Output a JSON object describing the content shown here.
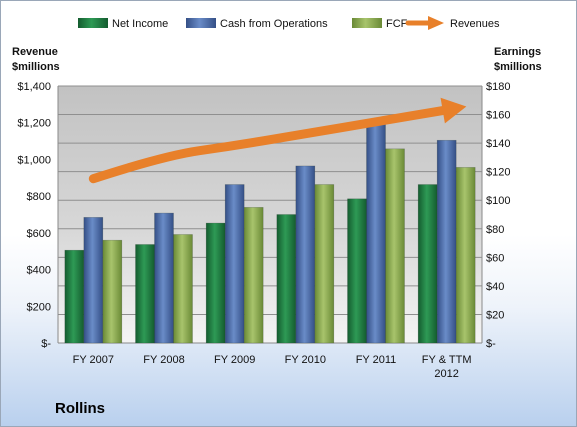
{
  "company": "Rollins",
  "colors": {
    "net_income": "#1e7a40",
    "cash_ops": "#4a6aa8",
    "fcf": "#8aa850",
    "revenues": "#e8802a"
  },
  "chart_data": {
    "type": "bar",
    "categories": [
      "FY 2007",
      "FY 2008",
      "FY 2009",
      "FY 2010",
      "FY 2011",
      "FY & TTM 2012"
    ],
    "left_axis": {
      "title_lines": [
        "Revenue",
        "$millions"
      ],
      "range": [
        0,
        1400
      ],
      "step": 200,
      "tick_labels": [
        "$-",
        "$200",
        "$400",
        "$600",
        "$800",
        "$1,000",
        "$1,200",
        "$1,400"
      ]
    },
    "right_axis": {
      "title_lines": [
        "Earnings",
        "$millions"
      ],
      "range": [
        0,
        180
      ],
      "step": 20,
      "tick_labels": [
        "$-",
        "$20",
        "$40",
        "$60",
        "$80",
        "$100",
        "$120",
        "$140",
        "$160",
        "$180"
      ]
    },
    "series": [
      {
        "name": "Net Income",
        "axis": "right",
        "kind": "bar",
        "values": [
          65,
          69,
          84,
          90,
          101,
          111
        ]
      },
      {
        "name": "Cash from Operations",
        "axis": "right",
        "kind": "bar",
        "values": [
          88,
          91,
          111,
          124,
          155,
          142
        ]
      },
      {
        "name": "FCF",
        "axis": "right",
        "kind": "bar",
        "values": [
          72,
          76,
          95,
          111,
          136,
          123
        ]
      },
      {
        "name": "Revenues",
        "axis": "left",
        "kind": "arrow",
        "values": [
          895,
          1020,
          1075,
          1140,
          1205,
          1270
        ]
      }
    ],
    "legend_position": "top",
    "grid": true
  }
}
